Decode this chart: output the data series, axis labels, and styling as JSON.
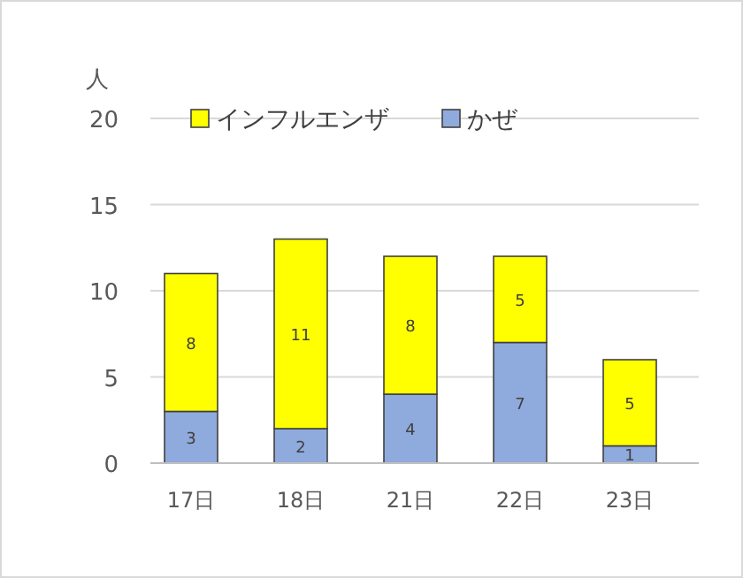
{
  "chart_data": {
    "type": "bar",
    "stacked": true,
    "ylabel": "人",
    "categories": [
      "17日",
      "18日",
      "21日",
      "22日",
      "23日"
    ],
    "series": [
      {
        "name": "かぜ",
        "color": "#8faadc",
        "values": [
          3,
          2,
          4,
          7,
          1
        ]
      },
      {
        "name": "インフルエンザ",
        "color": "#ffff00",
        "values": [
          8,
          11,
          8,
          5,
          5
        ]
      }
    ],
    "ylim": [
      0,
      20
    ],
    "yticks": [
      0,
      5,
      10,
      15,
      20
    ],
    "grid": "y",
    "legend": "top",
    "data_labels": true
  }
}
